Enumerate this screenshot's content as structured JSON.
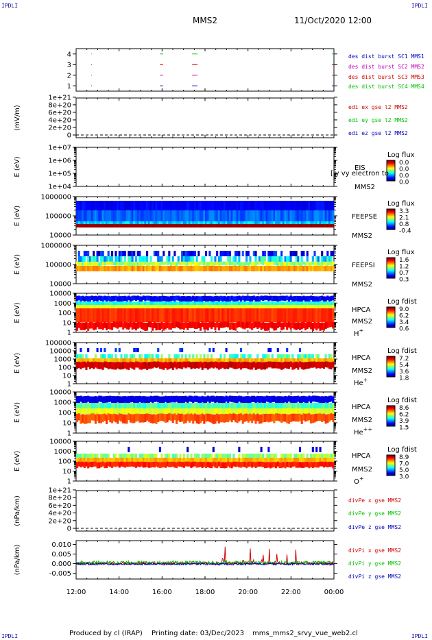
{
  "header": {
    "mission": "MMS2",
    "datetime": "11/Oct/2020 12:00",
    "corner_label": "IPDLI"
  },
  "footer": {
    "produced_by": "Produced by cl (IRAP)",
    "printing_date": "Printing date: 03/Dec/2023",
    "file": "mms_mms2_srvy_vue_web2.cl"
  },
  "chart_data": [
    {
      "type": "line",
      "panel": "burst",
      "y_ticks": [
        "1",
        "2",
        "3",
        "4"
      ],
      "ylim": [
        0.5,
        4.5
      ],
      "series": [
        {
          "name": "des dist burst SC1 MMS1",
          "color": "#0000c0",
          "level": 1
        },
        {
          "name": "des dist burst SC2 MMS2",
          "color": "#c000c0",
          "level": 2
        },
        {
          "name": "des dist burst SC3 MMS3",
          "color": "#d00000",
          "level": 3
        },
        {
          "name": "des dist burst SC4 MMS4",
          "color": "#00c000",
          "level": 4
        }
      ],
      "burst_hours": [
        [
          0.7,
          0.72
        ],
        [
          3.9,
          4.05
        ],
        [
          5.4,
          5.65
        ],
        [
          11.9,
          12.0
        ]
      ]
    },
    {
      "type": "line",
      "panel": "edi",
      "ylabel": "(mV/m)",
      "y_ticks": [
        "0",
        "2e+20",
        "4e+20",
        "6e+20",
        "8e+20",
        "1e+21"
      ],
      "ylim": [
        0,
        1e+21
      ],
      "series": [
        {
          "name": "edi ex gse l2 MMS2",
          "color": "#d00000"
        },
        {
          "name": "edi ey gse l2 MMS2",
          "color": "#00c000"
        },
        {
          "name": "edi ez gse l2 MMS2",
          "color": "#0000c0"
        }
      ]
    },
    {
      "type": "heatmap",
      "panel": "eis",
      "ylabel": "E (eV)",
      "y_ticks": [
        "1e+04",
        "1e+05",
        "1e+06",
        "1e+07"
      ],
      "instrument": "EIS",
      "spacecraft": "MMS2",
      "overlay_text": "[ly vy electron to",
      "colorbar": {
        "title": "Log flux",
        "ticks": [
          "0.0",
          "0.0",
          "0.0",
          "0.0"
        ]
      }
    },
    {
      "type": "heatmap",
      "panel": "feepse",
      "ylabel": "E (eV)",
      "y_ticks": [
        "10000",
        "100000",
        "1000000"
      ],
      "instrument": "FEEPSE",
      "spacecraft": "MMS2",
      "colorbar": {
        "title": "Log flux",
        "ticks": [
          "3.3",
          "2.1",
          "0.8",
          "-0.4"
        ]
      }
    },
    {
      "type": "heatmap",
      "panel": "feepsi",
      "ylabel": "E (eV)",
      "y_ticks": [
        "10000",
        "100000",
        "1000000"
      ],
      "instrument": "FEEPSI",
      "spacecraft": "MMS2",
      "colorbar": {
        "title": "Log flux",
        "ticks": [
          "1.6",
          "1.2",
          "0.7",
          "0.3"
        ]
      }
    },
    {
      "type": "heatmap",
      "panel": "hpca_h",
      "ylabel": "E (eV)",
      "y_ticks": [
        "1",
        "10",
        "100",
        "1000",
        "10000"
      ],
      "instrument": "HPCA",
      "spacecraft": "MMS2",
      "species": "H+",
      "species_base": "H",
      "species_sup": "+",
      "colorbar": {
        "title": "Log fdist",
        "ticks": [
          "9.0",
          "6.2",
          "3.4",
          "0.6"
        ]
      }
    },
    {
      "type": "heatmap",
      "panel": "hpca_he",
      "ylabel": "E (eV)",
      "y_ticks": [
        "1",
        "10",
        "100",
        "1000",
        "10000",
        "100000"
      ],
      "instrument": "HPCA",
      "spacecraft": "MMS2",
      "species": "He+",
      "species_base": "He",
      "species_sup": "+",
      "colorbar": {
        "title": "Log fdist",
        "ticks": [
          "7.2",
          "5.4",
          "3.6",
          "1.8"
        ]
      }
    },
    {
      "type": "heatmap",
      "panel": "hpca_hepp",
      "ylabel": "E (eV)",
      "y_ticks": [
        "1",
        "10",
        "100",
        "1000",
        "10000"
      ],
      "instrument": "HPCA",
      "spacecraft": "MMS2",
      "species": "He++",
      "species_base": "He",
      "species_sup": "++",
      "colorbar": {
        "title": "Log fdist",
        "ticks": [
          "8.6",
          "6.2",
          "3.9",
          "1.5"
        ]
      }
    },
    {
      "type": "heatmap",
      "panel": "hpca_o",
      "ylabel": "E (eV)",
      "y_ticks": [
        "1",
        "10",
        "100",
        "1000",
        "10000"
      ],
      "instrument": "HPCA",
      "spacecraft": "MMS2",
      "species": "O+",
      "species_base": "O",
      "species_sup": "+",
      "colorbar": {
        "title": "Log fdist",
        "ticks": [
          "8.9",
          "7.0",
          "5.0",
          "3.0"
        ]
      }
    },
    {
      "type": "line",
      "panel": "divpe",
      "ylabel": "(nPa/km)",
      "y_ticks": [
        "0",
        "2e+20",
        "4e+20",
        "6e+20",
        "8e+20",
        "1e+21"
      ],
      "ylim": [
        0,
        1e+21
      ],
      "series": [
        {
          "name": "divPe x gse MMS2",
          "color": "#d00000"
        },
        {
          "name": "divPe y gse MMS2",
          "color": "#00c000"
        },
        {
          "name": "divPe z gse MMS2",
          "color": "#0000c0"
        }
      ]
    },
    {
      "type": "line",
      "panel": "divpi",
      "ylabel": "(nPa/km)",
      "y_ticks": [
        "-0.005",
        "0.000",
        "0.005",
        "0.010"
      ],
      "ylim": [
        -0.008,
        0.012
      ],
      "series": [
        {
          "name": "divPi x gse MMS2",
          "color": "#d00000"
        },
        {
          "name": "divPi y gse MMS2",
          "color": "#00c000"
        },
        {
          "name": "divPi z gse MMS2",
          "color": "#0000c0"
        }
      ]
    }
  ],
  "x_axis": {
    "ticks": [
      "12:00",
      "14:00",
      "16:00",
      "18:00",
      "20:00",
      "22:00",
      "00:00"
    ],
    "xlim_hours": [
      0,
      12
    ]
  },
  "colors": {
    "zero_line": "#000000",
    "corner_text": "#0000a0"
  }
}
